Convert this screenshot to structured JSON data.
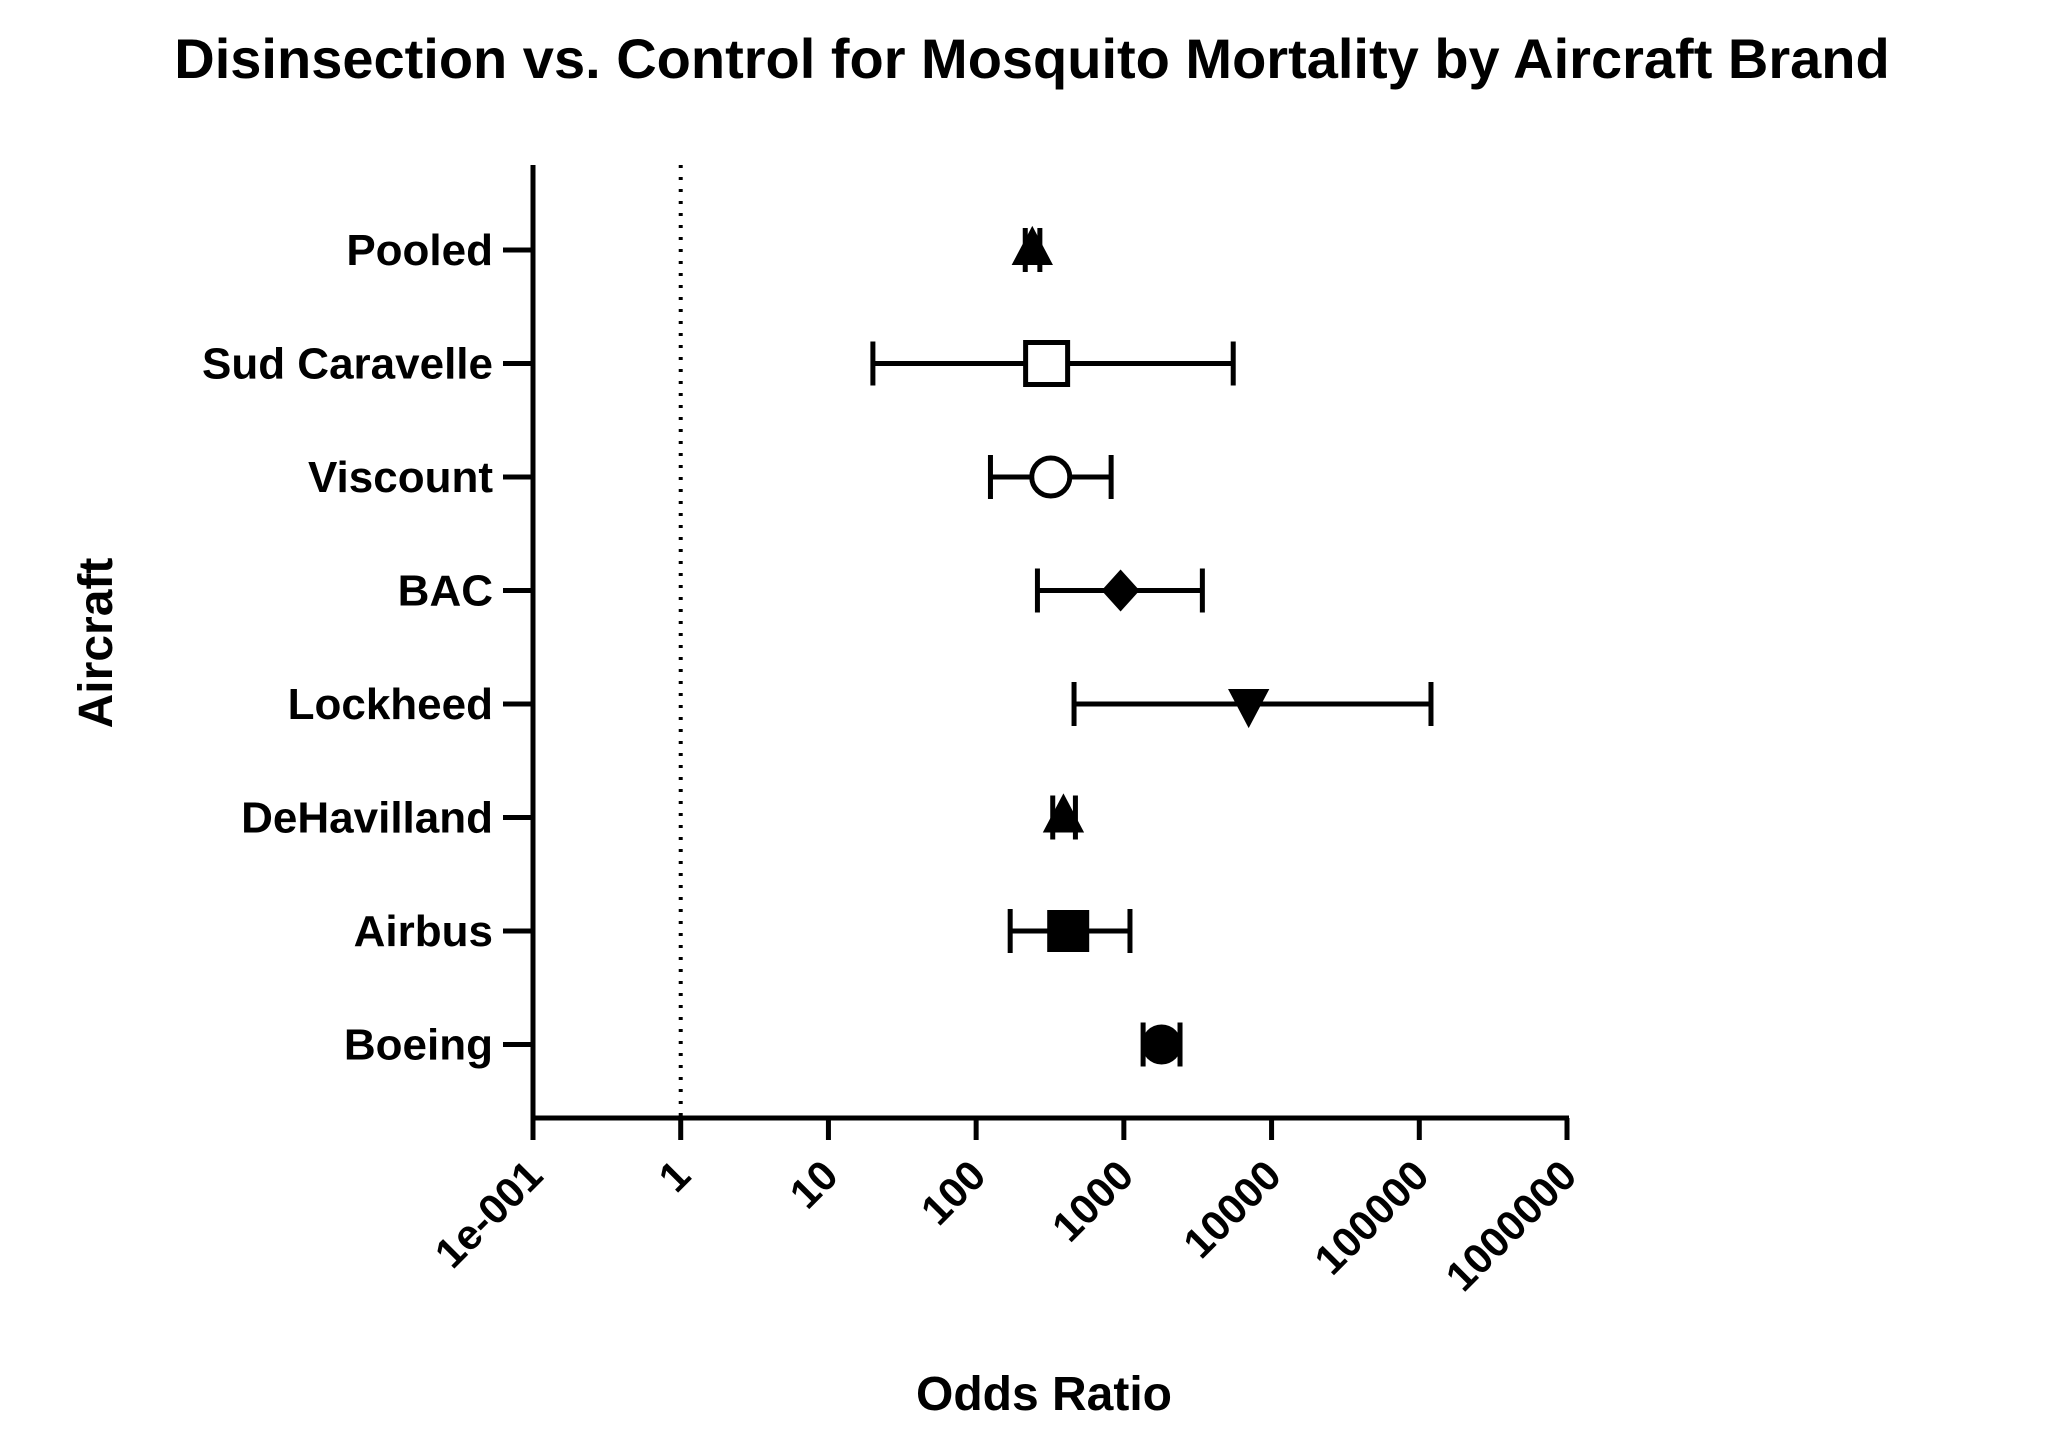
{
  "chart_data": {
    "type": "forest",
    "title": "Disinsection vs. Control for Mosquito Mortality by Aircraft Brand",
    "xlabel": "Odds Ratio",
    "ylabel": "Aircraft",
    "x_scale": "log10",
    "xlim": [
      0.1,
      1000000
    ],
    "x_ticks": [
      0.1,
      1,
      10,
      100,
      1000,
      10000,
      100000,
      1000000
    ],
    "x_tick_labels": [
      "1e-001",
      "1",
      "10",
      "100",
      "1000",
      "10000",
      "100000",
      "1000000"
    ],
    "reference_line": 1,
    "categories": [
      "Pooled",
      "Sud Caravelle",
      "Viscount",
      "BAC",
      "Lockheed",
      "DeHavilland",
      "Airbus",
      "Boeing"
    ],
    "series": [
      {
        "name": "Pooled",
        "estimate": 240,
        "lower": 215,
        "upper": 270,
        "marker": "triangle-up"
      },
      {
        "name": "Sud Caravelle",
        "estimate": 300,
        "lower": 20,
        "upper": 5500,
        "marker": "square-open"
      },
      {
        "name": "Viscount",
        "estimate": 320,
        "lower": 125,
        "upper": 820,
        "marker": "circle-open"
      },
      {
        "name": "BAC",
        "estimate": 950,
        "lower": 260,
        "upper": 3400,
        "marker": "diamond"
      },
      {
        "name": "Lockheed",
        "estimate": 7000,
        "lower": 460,
        "upper": 120000,
        "marker": "triangle-down"
      },
      {
        "name": "DeHavilland",
        "estimate": 390,
        "lower": 330,
        "upper": 470,
        "marker": "triangle-up"
      },
      {
        "name": "Airbus",
        "estimate": 420,
        "lower": 170,
        "upper": 1100,
        "marker": "square"
      },
      {
        "name": "Boeing",
        "estimate": 1800,
        "lower": 1350,
        "upper": 2400,
        "marker": "circle"
      }
    ]
  }
}
